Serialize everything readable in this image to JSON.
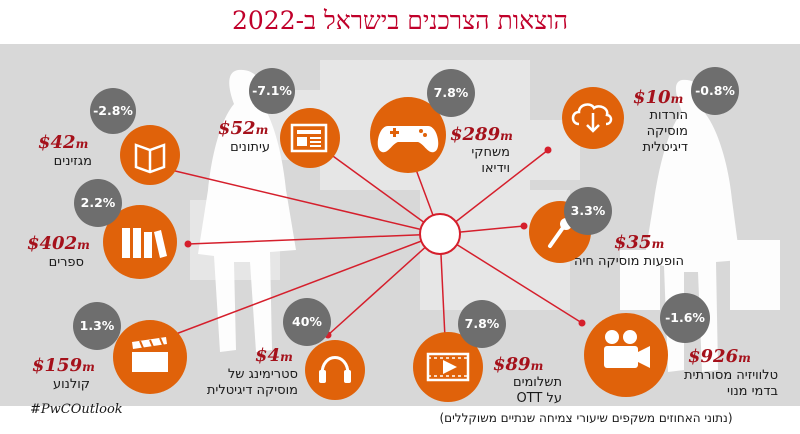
{
  "title": "הוצאות הצרכנים בישראל ב-2022",
  "hashtag": "#PwCOutlook",
  "footnote": "(נתוני האחוזים משקפים שיעורי צמיחה שנתיים משוקללים)",
  "colors": {
    "orange": "#e0620a",
    "gray": "#6e6e6e",
    "red": "#a5111b",
    "accent_red": "#d51f2c"
  },
  "segments": [
    {
      "id": "magazines",
      "icon": "book-icon",
      "value": "$42",
      "unit": "m",
      "label": "מגזינים",
      "growth": "-2.8%"
    },
    {
      "id": "newspapers",
      "icon": "newspaper-icon",
      "value": "$52",
      "unit": "m",
      "label": "עיתונים",
      "growth": "-7.1%"
    },
    {
      "id": "video-games",
      "icon": "gamepad-icon",
      "value": "$289",
      "unit": "m",
      "label": "משחקי\nוידיאו",
      "growth": "7.8%"
    },
    {
      "id": "music-downloads",
      "icon": "cloud-download-icon",
      "value": "$10",
      "unit": "m",
      "label": "הורדות\nמוסיקה\nדיגיטלית",
      "growth": "-0.8%"
    },
    {
      "id": "books",
      "icon": "books-icon",
      "value": "$402",
      "unit": "m",
      "label": "ספרים",
      "growth": "2.2%"
    },
    {
      "id": "live-music",
      "icon": "microphone-icon",
      "value": "$35",
      "unit": "m",
      "label": "הופעות מוסיקה חיה",
      "growth": "3.3%"
    },
    {
      "id": "cinema",
      "icon": "clapperboard-icon",
      "value": "$159",
      "unit": "m",
      "label": "קולנוע",
      "growth": "1.3%"
    },
    {
      "id": "music-streaming",
      "icon": "headphones-icon",
      "value": "$4",
      "unit": "m",
      "label": "סטרימינג של\nמוסיקה דיגיטלית",
      "growth": "40%"
    },
    {
      "id": "ott",
      "icon": "film-play-icon",
      "value": "$89",
      "unit": "m",
      "label": "תשלומים\nעל OTT",
      "growth": "7.8%"
    },
    {
      "id": "tv-video",
      "icon": "video-camera-icon",
      "value": "$926",
      "unit": "m",
      "label": "טלוויזיה מסורתית\nבדמי מנוי",
      "growth": "-1.6%"
    }
  ]
}
